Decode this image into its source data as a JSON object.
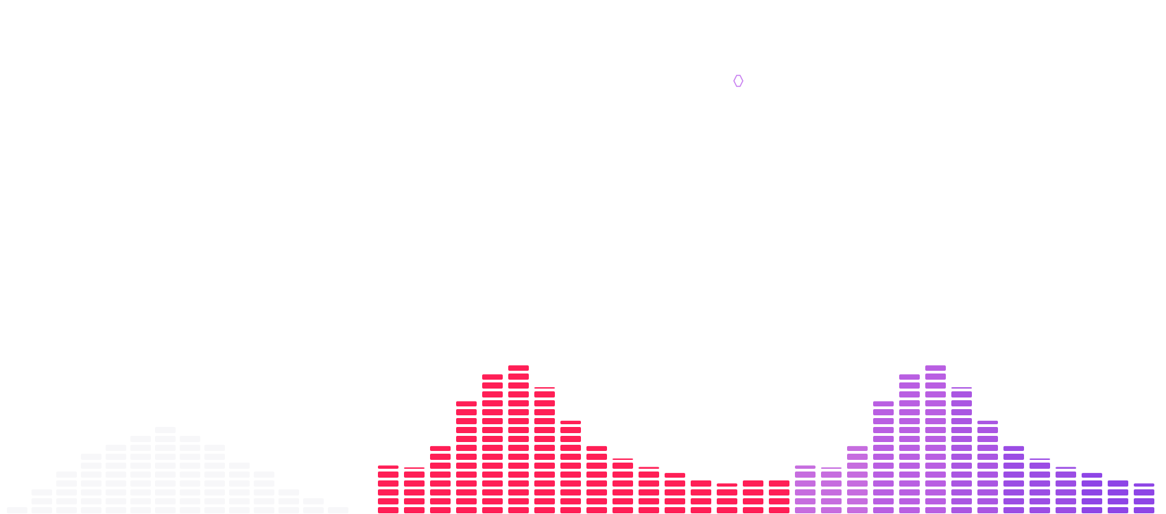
{
  "visualizer": {
    "cursor_icon": "hexagon-outline-icon",
    "cursor_color": "#c77df0",
    "ghost_color": "#f7f7f9",
    "groups": [
      {
        "name": "red-group",
        "colors": [
          "#ff1f56"
        ],
        "levels": [
          0.32,
          0.3,
          0.45,
          0.75,
          0.93,
          0.99,
          0.84,
          0.62,
          0.45,
          0.36,
          0.31,
          0.27,
          0.22,
          0.2,
          0.23,
          0.22
        ]
      },
      {
        "name": "purple-group",
        "colors": [
          "#c66ddf",
          "#b95fe2",
          "#aa56e2",
          "#9b4de4",
          "#8e45e6",
          "#8040e8"
        ],
        "levels": [
          0.32,
          0.3,
          0.45,
          0.75,
          0.93,
          0.99,
          0.84,
          0.62,
          0.45,
          0.36,
          0.31,
          0.27,
          0.22,
          0.2,
          0.23,
          0.22
        ]
      }
    ],
    "ghost_levels": [
      0.05,
      0.12,
      0.24,
      0.36,
      0.45,
      0.52,
      0.56,
      0.52,
      0.44,
      0.34,
      0.24,
      0.14,
      0.07,
      0.04
    ]
  }
}
